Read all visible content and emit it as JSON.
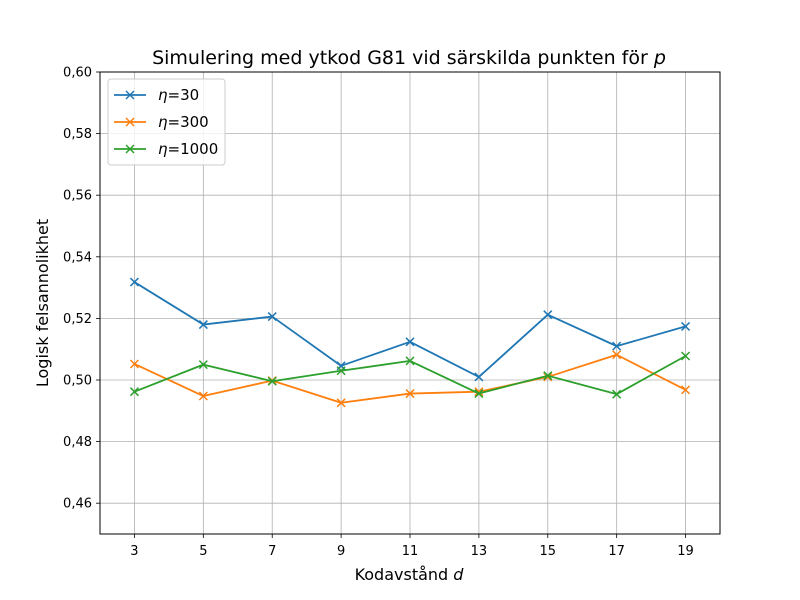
{
  "chart_data": {
    "type": "line",
    "title_main": "Simulering med ytkod G81 vid särskilda punkten för ",
    "title_var": "p",
    "xlabel_main": "Kodavstånd ",
    "xlabel_var": "d",
    "ylabel": "Logisk felsannolikhet",
    "x": [
      3,
      5,
      7,
      9,
      11,
      13,
      15,
      17,
      19
    ],
    "x_tick_labels": [
      "3",
      "5",
      "7",
      "9",
      "11",
      "13",
      "15",
      "17",
      "19"
    ],
    "y_ticks": [
      0.46,
      0.48,
      0.5,
      0.52,
      0.54,
      0.56,
      0.58,
      0.6
    ],
    "y_tick_labels": [
      "0,46",
      "0,48",
      "0,50",
      "0,52",
      "0,54",
      "0,56",
      "0,58",
      "0,60"
    ],
    "xlim": [
      2,
      20
    ],
    "ylim": [
      0.45,
      0.6
    ],
    "grid": true,
    "legend_position": "top-left",
    "marker": "x",
    "series": [
      {
        "name": "η=30",
        "name_var": "η",
        "name_rest": "=30",
        "color": "#1f77b4",
        "values": [
          0.5318,
          0.518,
          0.5206,
          0.5046,
          0.5124,
          0.501,
          0.5212,
          0.511,
          0.5174
        ]
      },
      {
        "name": "η=300",
        "name_var": "η",
        "name_rest": "=300",
        "color": "#ff7f0e",
        "values": [
          0.5052,
          0.4948,
          0.4998,
          0.4926,
          0.4956,
          0.4962,
          0.501,
          0.5082,
          0.4968
        ]
      },
      {
        "name": "η=1000",
        "name_var": "η",
        "name_rest": "=1000",
        "color": "#2ca02c",
        "values": [
          0.4962,
          0.505,
          0.4996,
          0.503,
          0.5062,
          0.4956,
          0.5014,
          0.4954,
          0.5078
        ]
      }
    ]
  }
}
